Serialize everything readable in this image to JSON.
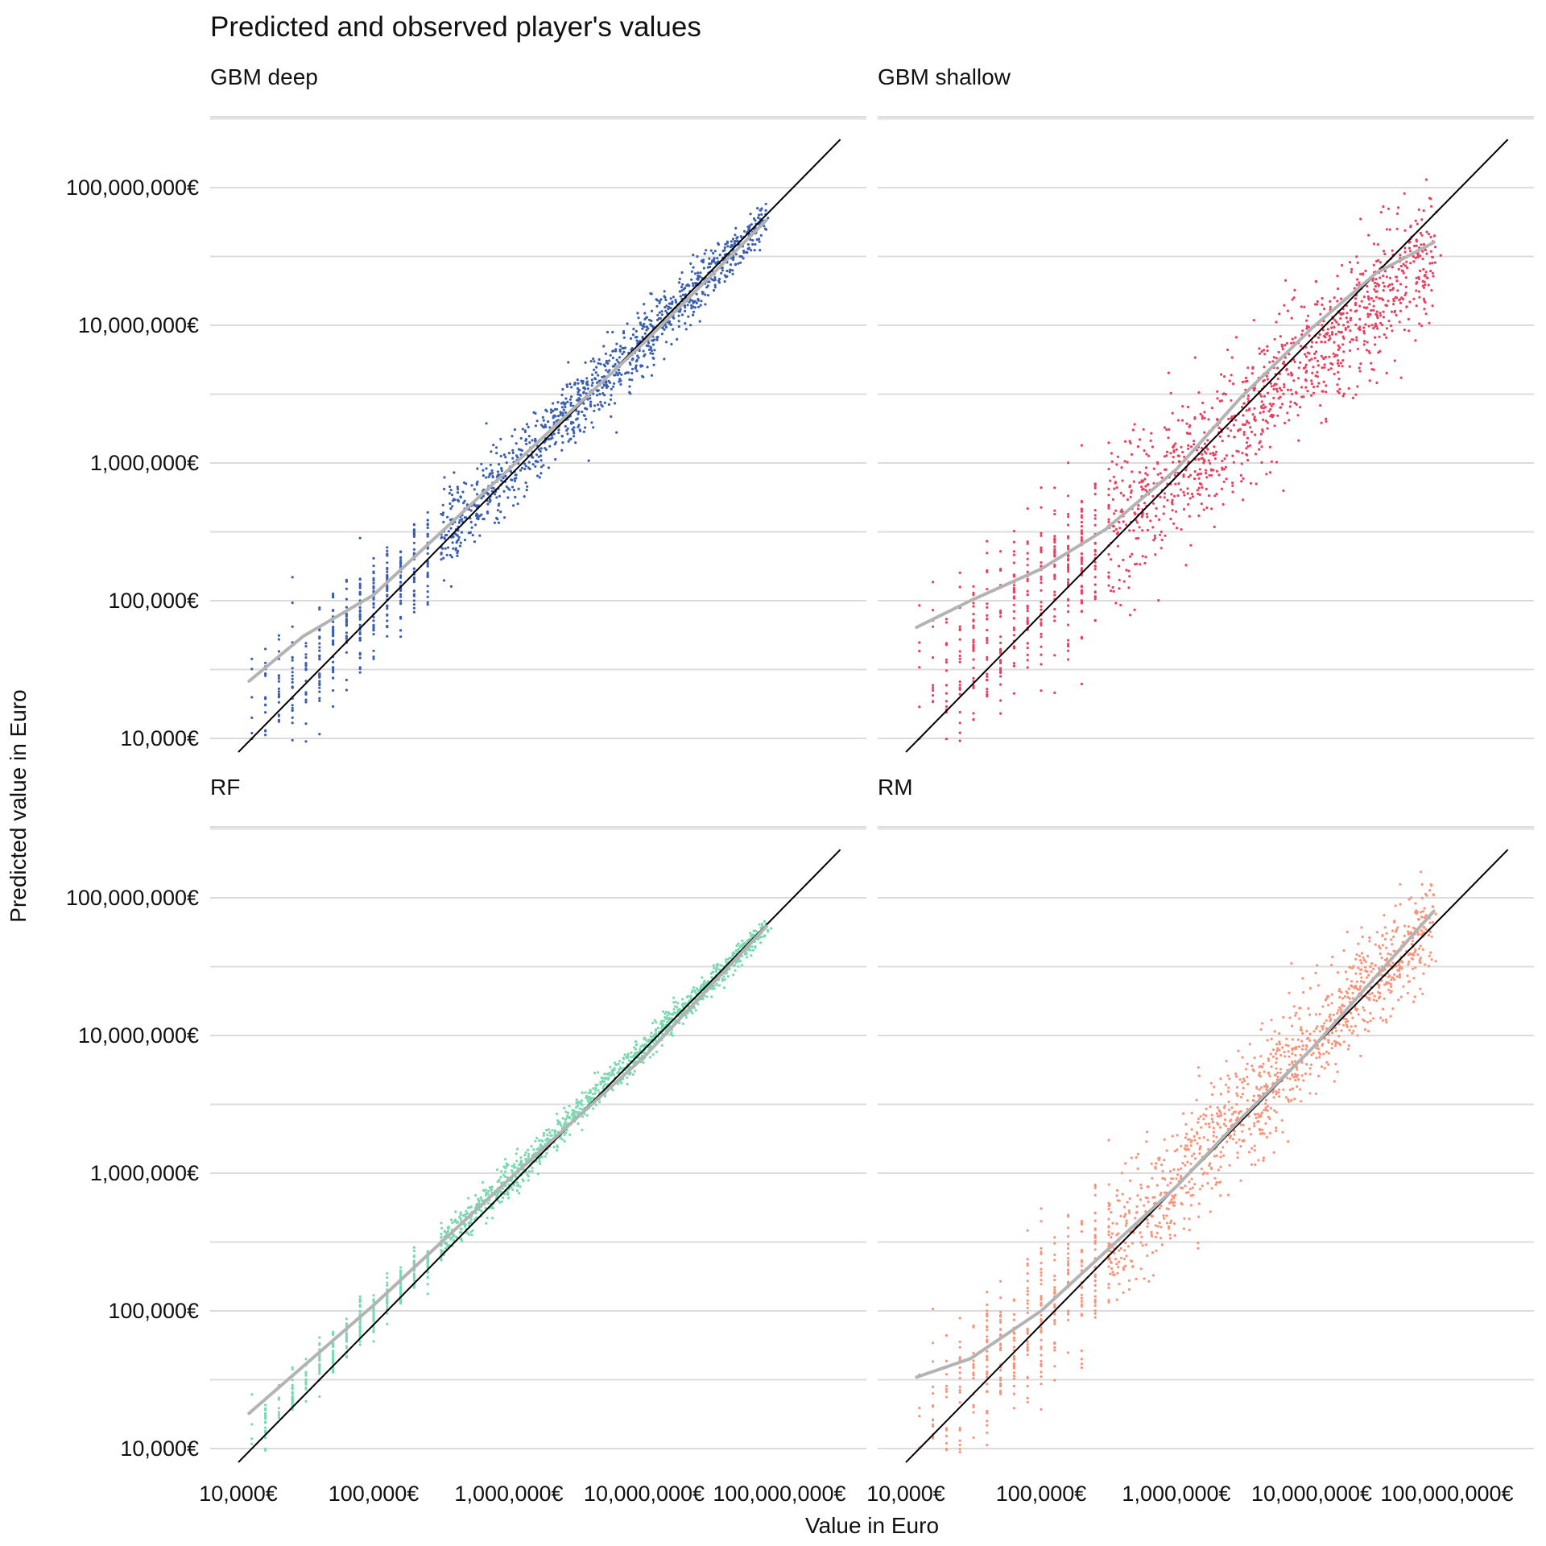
{
  "chart_data": {
    "type": "scatter",
    "title": "Predicted and observed player's values",
    "xlabel": "Value in Euro",
    "ylabel": "Predicted value in Euro",
    "x_scale": "log10",
    "y_scale": "log10",
    "xlim": [
      10000,
      100000000
    ],
    "ylim": [
      10000,
      100000000
    ],
    "x_ticks": [
      10000,
      100000,
      1000000,
      10000000,
      100000000
    ],
    "x_tick_labels": [
      "10,000€",
      "100,000€",
      "1,000,000€",
      "10,000,000€",
      "100,000,000€"
    ],
    "y_ticks": [
      10000,
      100000,
      1000000,
      10000000,
      100000000
    ],
    "y_tick_labels": [
      "10,000€",
      "100,000€",
      "1,000,000€",
      "10,000,000€",
      "100,000,000€"
    ],
    "grid": "horizontal major and minor",
    "reference_line": "y = x",
    "smooth_color": "#b3b3b3",
    "panels": [
      {
        "name": "GBM deep",
        "color": "#3a5fb0",
        "smooth": {
          "x": [
            12000,
            30000,
            100000,
            1000000,
            10000000,
            80000000
          ],
          "y": [
            26000,
            55000,
            110000,
            900000,
            7500000,
            58000000
          ]
        },
        "summary": {
          "slope": 0.96,
          "intercept_log10": 0.17,
          "spread_log10_at_min": 0.22,
          "spread_log10_at_max": 0.08,
          "x_min": 12000,
          "x_max": 80000000
        }
      },
      {
        "name": "GBM shallow",
        "color": "#e8405e",
        "smooth": {
          "x": [
            12000,
            30000,
            100000,
            300000,
            1000000,
            3000000,
            10000000,
            30000000,
            80000000
          ],
          "y": [
            64000,
            100000,
            170000,
            330000,
            900000,
            3000000,
            9500000,
            24000000,
            40000000
          ]
        },
        "summary": {
          "slope": 0.85,
          "intercept_log10": 0.82,
          "spread_log10_at_min": 0.35,
          "spread_log10_at_max": 0.22,
          "x_min": 12000,
          "x_max": 80000000
        }
      },
      {
        "name": "RF",
        "color": "#79d9b1",
        "smooth": {
          "x": [
            12000,
            100000,
            1000000,
            10000000,
            80000000
          ],
          "y": [
            18000,
            110000,
            900000,
            7000000,
            62000000
          ]
        },
        "summary": {
          "slope": 0.96,
          "intercept_log10": 0.19,
          "spread_log10_at_min": 0.09,
          "spread_log10_at_max": 0.04,
          "x_min": 12000,
          "x_max": 80000000
        }
      },
      {
        "name": "RM",
        "color": "#f7947a",
        "smooth": {
          "x": [
            12000,
            30000,
            100000,
            1000000,
            3000000,
            10000000,
            80000000
          ],
          "y": [
            33000,
            45000,
            100000,
            800000,
            2500000,
            8000000,
            80000000
          ]
        },
        "summary": {
          "slope": 1.0,
          "intercept_log10": -0.05,
          "spread_log10_at_min": 0.3,
          "spread_log10_at_max": 0.16,
          "x_min": 12000,
          "x_max": 80000000
        }
      }
    ]
  }
}
